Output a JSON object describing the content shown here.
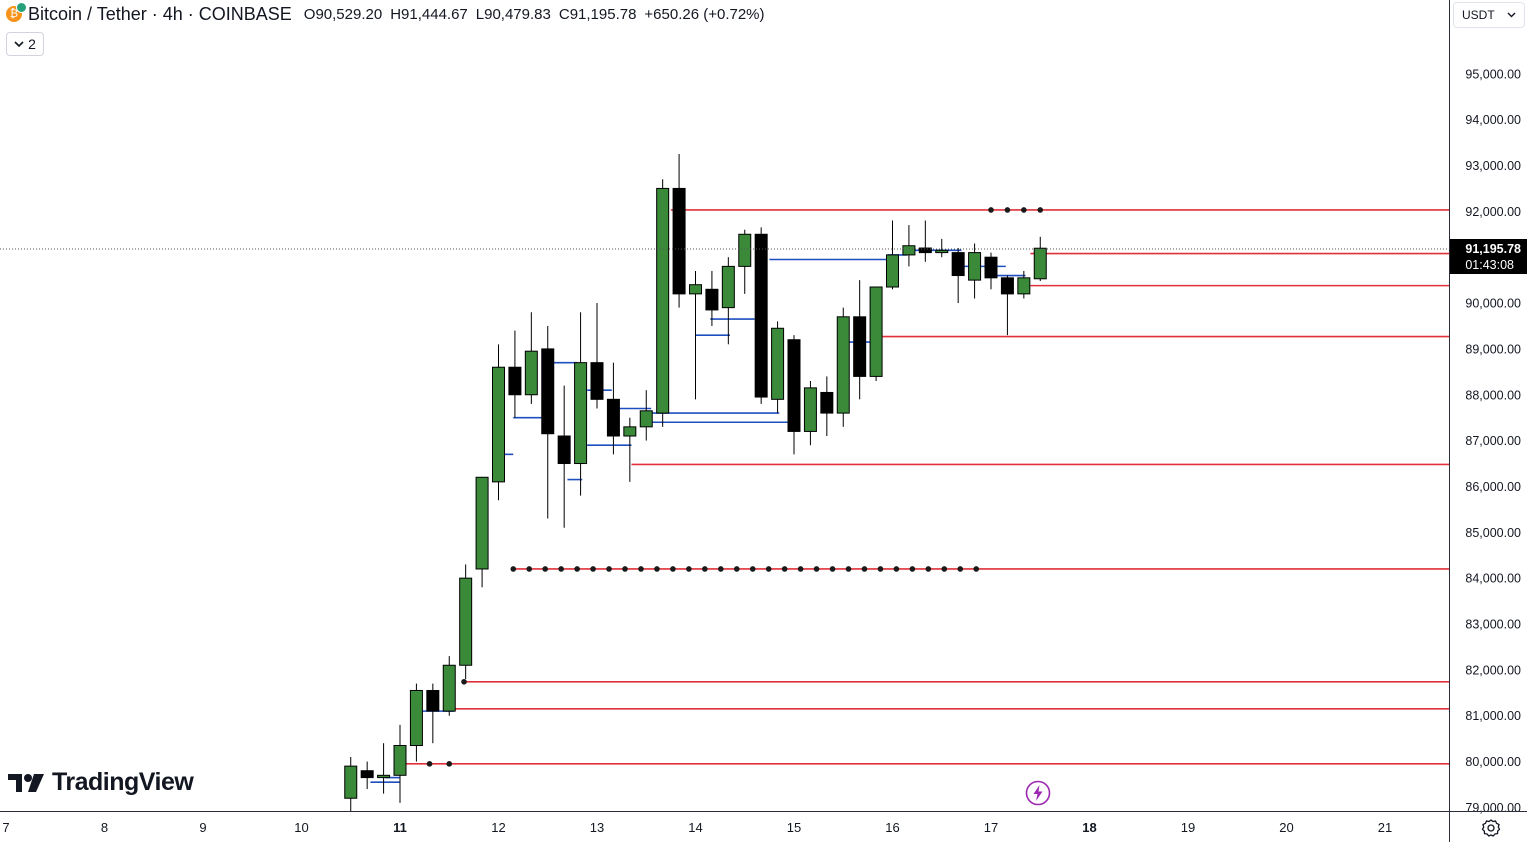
{
  "header": {
    "symbol_title": "Bitcoin / Tether · 4h · COINBASE",
    "open_label": "O",
    "open_value": "90,529.20",
    "high_label": "H",
    "high_value": "91,444.67",
    "low_label": "L",
    "low_value": "90,479.83",
    "close_label": "C",
    "close_value": "91,195.78",
    "change": "+650.26 (+0.72%)"
  },
  "indicators_toggle": {
    "count": "2"
  },
  "currency_select": {
    "value": "USDT"
  },
  "brand": {
    "name": "TradingView"
  },
  "price_tag": {
    "price": "91,195.78",
    "countdown": "01:43:08"
  },
  "colors": {
    "up": "#3a8a3a",
    "down": "#000000",
    "level": "#e0303a",
    "blue_level": "#1f4fbf",
    "axis_text": "#131722",
    "flash": "#9c27b0"
  },
  "chart_data": {
    "type": "candlestick",
    "ylim": [
      78900,
      96000
    ],
    "y_ticks": [
      79000,
      80000,
      81000,
      82000,
      83000,
      84000,
      85000,
      86000,
      87000,
      88000,
      89000,
      90000,
      91000,
      92000,
      93000,
      94000,
      95000
    ],
    "y_tick_labels": [
      "79,000.00",
      "80,000.00",
      "81,000.00",
      "82,000.00",
      "83,000.00",
      "84,000.00",
      "85,000.00",
      "86,000.00",
      "87,000.00",
      "88,000.00",
      "89,000.00",
      "90,000.00",
      "91,000.00",
      "92,000.00",
      "93,000.00",
      "94,000.00",
      "95,000.00"
    ],
    "x_tick_labels": [
      "7",
      "8",
      "9",
      "10",
      "11",
      "12",
      "13",
      "14",
      "15",
      "16",
      "17",
      "18",
      "19",
      "20",
      "21"
    ],
    "x_tick_day": [
      7,
      8,
      9,
      10,
      11,
      12,
      13,
      14,
      15,
      16,
      17,
      18,
      19,
      20,
      21
    ],
    "bold_ticks": [
      "11",
      "18"
    ],
    "candle_interval_hours": 4,
    "first_candle_day": 10.5,
    "candles": [
      {
        "o": 79200,
        "h": 80100,
        "l": 78900,
        "c": 79900
      },
      {
        "o": 79800,
        "h": 80000,
        "l": 79400,
        "c": 79650
      },
      {
        "o": 79650,
        "h": 80400,
        "l": 79300,
        "c": 79700
      },
      {
        "o": 79700,
        "h": 80800,
        "l": 79100,
        "c": 80350
      },
      {
        "o": 80350,
        "h": 81700,
        "l": 80000,
        "c": 81550
      },
      {
        "o": 81550,
        "h": 81700,
        "l": 80400,
        "c": 81100
      },
      {
        "o": 81100,
        "h": 82300,
        "l": 81000,
        "c": 82100
      },
      {
        "o": 82100,
        "h": 84300,
        "l": 81800,
        "c": 84000
      },
      {
        "o": 84200,
        "h": 86200,
        "l": 83800,
        "c": 86200
      },
      {
        "o": 86100,
        "h": 89100,
        "l": 85700,
        "c": 88600
      },
      {
        "o": 88600,
        "h": 89400,
        "l": 87500,
        "c": 88000
      },
      {
        "o": 88000,
        "h": 89800,
        "l": 87800,
        "c": 88950
      },
      {
        "o": 89000,
        "h": 89500,
        "l": 85300,
        "c": 87150
      },
      {
        "o": 87100,
        "h": 88200,
        "l": 85100,
        "c": 86500
      },
      {
        "o": 86500,
        "h": 89800,
        "l": 85800,
        "c": 88700
      },
      {
        "o": 88700,
        "h": 90000,
        "l": 87700,
        "c": 87900
      },
      {
        "o": 87900,
        "h": 88700,
        "l": 86700,
        "c": 87100
      },
      {
        "o": 87100,
        "h": 87500,
        "l": 86100,
        "c": 87300
      },
      {
        "o": 87300,
        "h": 88100,
        "l": 87000,
        "c": 87650
      },
      {
        "o": 87600,
        "h": 92700,
        "l": 87300,
        "c": 92500
      },
      {
        "o": 92500,
        "h": 93250,
        "l": 89900,
        "c": 90200
      },
      {
        "o": 90200,
        "h": 90700,
        "l": 87900,
        "c": 90400
      },
      {
        "o": 90300,
        "h": 90700,
        "l": 89500,
        "c": 89850
      },
      {
        "o": 89900,
        "h": 91000,
        "l": 89100,
        "c": 90800
      },
      {
        "o": 90800,
        "h": 91600,
        "l": 90200,
        "c": 91500
      },
      {
        "o": 91500,
        "h": 91650,
        "l": 87800,
        "c": 87950
      },
      {
        "o": 87900,
        "h": 89600,
        "l": 87600,
        "c": 89450
      },
      {
        "o": 89200,
        "h": 89300,
        "l": 86700,
        "c": 87200
      },
      {
        "o": 87200,
        "h": 88300,
        "l": 86900,
        "c": 88150
      },
      {
        "o": 88050,
        "h": 88400,
        "l": 87100,
        "c": 87600
      },
      {
        "o": 87600,
        "h": 89900,
        "l": 87300,
        "c": 89700
      },
      {
        "o": 89700,
        "h": 90500,
        "l": 87900,
        "c": 88400
      },
      {
        "o": 88400,
        "h": 90300,
        "l": 88300,
        "c": 90350
      },
      {
        "o": 90350,
        "h": 91800,
        "l": 90300,
        "c": 91050
      },
      {
        "o": 91050,
        "h": 91700,
        "l": 90800,
        "c": 91250
      },
      {
        "o": 91200,
        "h": 91800,
        "l": 90900,
        "c": 91100
      },
      {
        "o": 91100,
        "h": 91400,
        "l": 91000,
        "c": 91150
      },
      {
        "o": 91100,
        "h": 91200,
        "l": 90000,
        "c": 90600
      },
      {
        "o": 90500,
        "h": 91300,
        "l": 90100,
        "c": 91100
      },
      {
        "o": 91000,
        "h": 91100,
        "l": 90300,
        "c": 90550
      },
      {
        "o": 90550,
        "h": 90600,
        "l": 89300,
        "c": 90200
      },
      {
        "o": 90200,
        "h": 90700,
        "l": 90100,
        "c": 90550
      },
      {
        "o": 90529.2,
        "h": 91444.67,
        "l": 90479.83,
        "c": 91195.78
      }
    ],
    "red_levels": [
      {
        "price": 92030,
        "from_day": 13.75
      },
      {
        "price": 91080,
        "from_day": 17.4
      },
      {
        "price": 90380,
        "from_day": 17.4
      },
      {
        "price": 89270,
        "from_day": 15.9
      },
      {
        "price": 86480,
        "from_day": 13.35
      },
      {
        "price": 84200,
        "from_day": 12.15
      },
      {
        "price": 81740,
        "from_day": 11.65
      },
      {
        "price": 81150,
        "from_day": 11.45
      },
      {
        "price": 79950,
        "from_day": 11.05
      }
    ],
    "dotted_levels": [
      {
        "price": 92030,
        "from_day": 17.0,
        "to_day": 17.5,
        "count": 4
      },
      {
        "price": 84200,
        "from_day": 12.15,
        "to_day": 16.85,
        "count": 30
      },
      {
        "price": 79950,
        "from_day": 11.3,
        "to_day": 11.5,
        "count": 2
      },
      {
        "price": 81740,
        "from_day": 11.65,
        "to_day": 11.65,
        "count": 1
      }
    ],
    "blue_segments": [
      {
        "price": 79550,
        "from_day": 10.7,
        "to_day": 11.0
      },
      {
        "price": 79650,
        "from_day": 10.85,
        "to_day": 11.0
      },
      {
        "price": 81100,
        "from_day": 11.2,
        "to_day": 11.55
      },
      {
        "price": 86700,
        "from_day": 12.05,
        "to_day": 12.15
      },
      {
        "price": 87500,
        "from_day": 12.15,
        "to_day": 12.45
      },
      {
        "price": 88700,
        "from_day": 12.55,
        "to_day": 12.8
      },
      {
        "price": 88100,
        "from_day": 12.9,
        "to_day": 13.15
      },
      {
        "price": 86900,
        "from_day": 12.9,
        "to_day": 13.35
      },
      {
        "price": 86150,
        "from_day": 12.7,
        "to_day": 12.85
      },
      {
        "price": 87700,
        "from_day": 13.2,
        "to_day": 13.55
      },
      {
        "price": 87600,
        "from_day": 13.55,
        "to_day": 14.85
      },
      {
        "price": 87400,
        "from_day": 13.55,
        "to_day": 14.95
      },
      {
        "price": 89300,
        "from_day": 14.0,
        "to_day": 14.35
      },
      {
        "price": 89650,
        "from_day": 14.15,
        "to_day": 14.6
      },
      {
        "price": 90950,
        "from_day": 14.75,
        "to_day": 15.95
      },
      {
        "price": 89150,
        "from_day": 15.55,
        "to_day": 15.85
      },
      {
        "price": 91050,
        "from_day": 15.95,
        "to_day": 16.15
      },
      {
        "price": 91150,
        "from_day": 16.15,
        "to_day": 16.7
      },
      {
        "price": 90800,
        "from_day": 16.65,
        "to_day": 17.15
      },
      {
        "price": 90600,
        "from_day": 17.0,
        "to_day": 17.35
      }
    ]
  }
}
